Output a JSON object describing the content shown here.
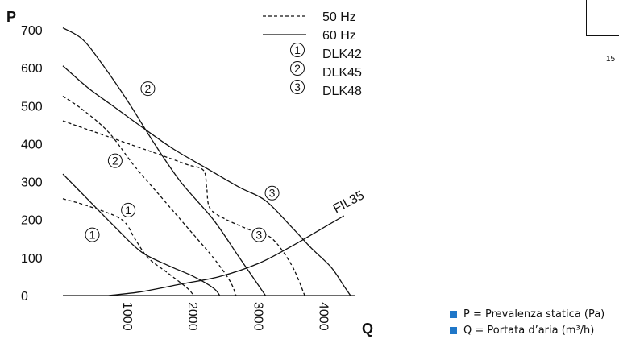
{
  "chart_data": {
    "type": "line",
    "ylabel": "P",
    "xlabel": "Q",
    "xlim": [
      0,
      4500
    ],
    "ylim": [
      0,
      700
    ],
    "x_ticks": [
      "1000",
      "2000",
      "3000",
      "4000"
    ],
    "y_ticks": [
      "0",
      "100",
      "200",
      "300",
      "400",
      "500",
      "600",
      "700"
    ],
    "legend": [
      {
        "style": "dashed",
        "label": "50 Hz"
      },
      {
        "style": "solid",
        "label": "60 Hz"
      },
      {
        "marker": "1",
        "label": "DLK42"
      },
      {
        "marker": "2",
        "label": "DLK45"
      },
      {
        "marker": "3",
        "label": "DLK48"
      }
    ],
    "legend_position": "top-right",
    "series": [
      {
        "model": "1",
        "freq": "60 Hz",
        "style": "solid",
        "points": [
          [
            0,
            320
          ],
          [
            400,
            250
          ],
          [
            800,
            180
          ],
          [
            1200,
            115
          ],
          [
            1600,
            80
          ],
          [
            2000,
            50
          ],
          [
            2300,
            20
          ],
          [
            2400,
            0
          ]
        ]
      },
      {
        "model": "1",
        "freq": "50 Hz",
        "style": "dashed",
        "points": [
          [
            0,
            255
          ],
          [
            400,
            235
          ],
          [
            900,
            200
          ],
          [
            1100,
            150
          ],
          [
            1300,
            100
          ],
          [
            1600,
            60
          ],
          [
            1900,
            20
          ],
          [
            2000,
            0
          ]
        ]
      },
      {
        "model": "2",
        "freq": "60 Hz",
        "style": "solid",
        "points": [
          [
            0,
            705
          ],
          [
            300,
            675
          ],
          [
            600,
            610
          ],
          [
            1000,
            510
          ],
          [
            1400,
            400
          ],
          [
            1800,
            300
          ],
          [
            2300,
            200
          ],
          [
            2700,
            100
          ],
          [
            3100,
            0
          ]
        ]
      },
      {
        "model": "2",
        "freq": "50 Hz",
        "style": "dashed",
        "points": [
          [
            0,
            525
          ],
          [
            300,
            490
          ],
          [
            700,
            430
          ],
          [
            1100,
            340
          ],
          [
            1500,
            260
          ],
          [
            1900,
            180
          ],
          [
            2300,
            100
          ],
          [
            2550,
            40
          ],
          [
            2650,
            0
          ]
        ]
      },
      {
        "model": "3",
        "freq": "60 Hz",
        "style": "solid",
        "points": [
          [
            0,
            605
          ],
          [
            400,
            545
          ],
          [
            800,
            495
          ],
          [
            1200,
            445
          ],
          [
            1700,
            385
          ],
          [
            2200,
            335
          ],
          [
            2700,
            285
          ],
          [
            3100,
            250
          ],
          [
            3500,
            180
          ],
          [
            3800,
            125
          ],
          [
            4100,
            75
          ],
          [
            4300,
            25
          ],
          [
            4400,
            0
          ]
        ]
      },
      {
        "model": "3",
        "freq": "50 Hz",
        "style": "dashed",
        "points": [
          [
            0,
            460
          ],
          [
            500,
            430
          ],
          [
            1000,
            400
          ],
          [
            1500,
            370
          ],
          [
            1900,
            345
          ],
          [
            2150,
            330
          ],
          [
            2200,
            285
          ],
          [
            2250,
            230
          ],
          [
            2500,
            200
          ],
          [
            2900,
            170
          ],
          [
            3200,
            150
          ],
          [
            3500,
            80
          ],
          [
            3700,
            0
          ]
        ]
      },
      {
        "name": "FIL35",
        "style": "solid",
        "points": [
          [
            700,
            0
          ],
          [
            1200,
            10
          ],
          [
            1800,
            30
          ],
          [
            2400,
            50
          ],
          [
            3000,
            85
          ],
          [
            3500,
            130
          ],
          [
            3900,
            170
          ],
          [
            4300,
            210
          ]
        ]
      }
    ],
    "curve_markers": [
      {
        "text": "1",
        "x": 450,
        "y": 160
      },
      {
        "text": "1",
        "x": 1000,
        "y": 225
      },
      {
        "text": "2",
        "x": 1300,
        "y": 545
      },
      {
        "text": "2",
        "x": 800,
        "y": 355
      },
      {
        "text": "3",
        "x": 3200,
        "y": 270
      },
      {
        "text": "3",
        "x": 3000,
        "y": 160
      }
    ],
    "annotations": [
      {
        "text": "FIL35",
        "x": 4250,
        "y": 225
      }
    ]
  },
  "notes": [
    {
      "text": "P = Prevalenza statica (Pa)",
      "color": "#1f77c8"
    },
    {
      "text": "Q = Portata d’aria (m³/h)",
      "color": "#1f77c8"
    }
  ],
  "fragment": {
    "number": "15"
  }
}
